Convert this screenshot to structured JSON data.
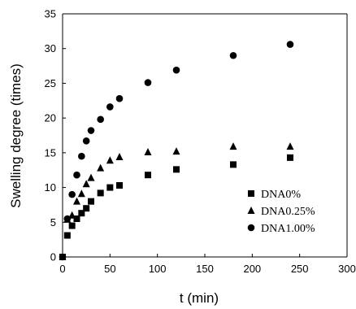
{
  "chart_data": {
    "type": "scatter",
    "xlabel": "t (min)",
    "ylabel": "Swelling degree (times)",
    "xlim": [
      0,
      300
    ],
    "ylim": [
      0,
      35
    ],
    "xticks": [
      "0",
      "50",
      "100",
      "150",
      "200",
      "250",
      "300"
    ],
    "yticks": [
      "0",
      "5",
      "10",
      "15",
      "20",
      "25",
      "30",
      "35"
    ],
    "grid": false,
    "legend_position": "lower-right",
    "series": [
      {
        "name": "DNA0%",
        "marker": "square",
        "x": [
          0,
          5,
          10,
          15,
          20,
          25,
          30,
          40,
          50,
          60,
          90,
          120,
          180,
          240
        ],
        "y": [
          0,
          3.1,
          4.5,
          5.5,
          6.3,
          7.0,
          8.0,
          9.2,
          10.0,
          10.3,
          11.8,
          12.6,
          13.3,
          14.3
        ]
      },
      {
        "name": "DNA0.25%",
        "marker": "triangle",
        "x": [
          0,
          5,
          10,
          15,
          20,
          25,
          30,
          40,
          50,
          60,
          90,
          120,
          180,
          240
        ],
        "y": [
          0,
          5.4,
          6.0,
          8.0,
          9.1,
          10.5,
          11.4,
          12.8,
          13.9,
          14.4,
          15.1,
          15.2,
          15.9,
          15.9
        ]
      },
      {
        "name": "DNA1.00%",
        "marker": "circle",
        "x": [
          0,
          5,
          10,
          15,
          20,
          25,
          30,
          40,
          50,
          60,
          90,
          120,
          180,
          240
        ],
        "y": [
          0,
          5.5,
          9.0,
          11.8,
          14.5,
          16.7,
          18.2,
          19.8,
          21.6,
          22.8,
          25.1,
          26.9,
          29.0,
          30.6
        ]
      }
    ]
  },
  "colors": {
    "marker": "#000000",
    "axis": "#000000",
    "background": "#ffffff"
  }
}
